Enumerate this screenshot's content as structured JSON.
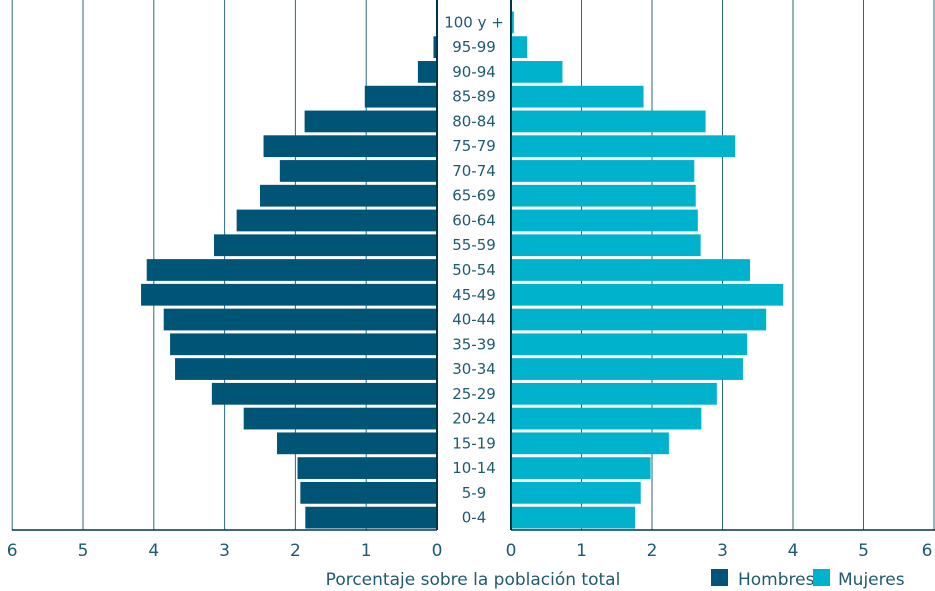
{
  "chart_data": {
    "type": "bar",
    "orientation": "horizontal",
    "subtype": "population-pyramid",
    "categories": [
      "100 y +",
      "95-99",
      "90-94",
      "85-89",
      "80-84",
      "75-79",
      "70-74",
      "65-69",
      "60-64",
      "55-59",
      "50-54",
      "45-49",
      "40-44",
      "35-39",
      "30-34",
      "25-29",
      "20-24",
      "15-19",
      "10-14",
      "5-9",
      "0-4"
    ],
    "series": [
      {
        "name": "Hombres",
        "color": "#005577",
        "side": "left",
        "values": [
          0.01,
          0.05,
          0.27,
          1.02,
          1.87,
          2.45,
          2.22,
          2.5,
          2.83,
          3.15,
          4.1,
          4.18,
          3.86,
          3.77,
          3.7,
          3.18,
          2.73,
          2.26,
          1.97,
          1.93,
          1.86
        ]
      },
      {
        "name": "Mujeres",
        "color": "#00b2cc",
        "side": "right",
        "values": [
          0.04,
          0.23,
          0.73,
          1.88,
          2.76,
          3.18,
          2.6,
          2.62,
          2.65,
          2.69,
          3.39,
          3.86,
          3.62,
          3.35,
          3.29,
          2.92,
          2.7,
          2.24,
          1.98,
          1.84,
          1.76
        ]
      }
    ],
    "x_ticks": [
      "6",
      "5",
      "4",
      "3",
      "2",
      "1",
      "0"
    ],
    "x_ticks_right": [
      "0",
      "1",
      "2",
      "3",
      "4",
      "5",
      "6"
    ],
    "xlim": [
      0,
      6
    ],
    "xlabel": "Porcentaje sobre la población total",
    "grid": "vertical",
    "legend_position": "bottom-right",
    "title": ""
  }
}
